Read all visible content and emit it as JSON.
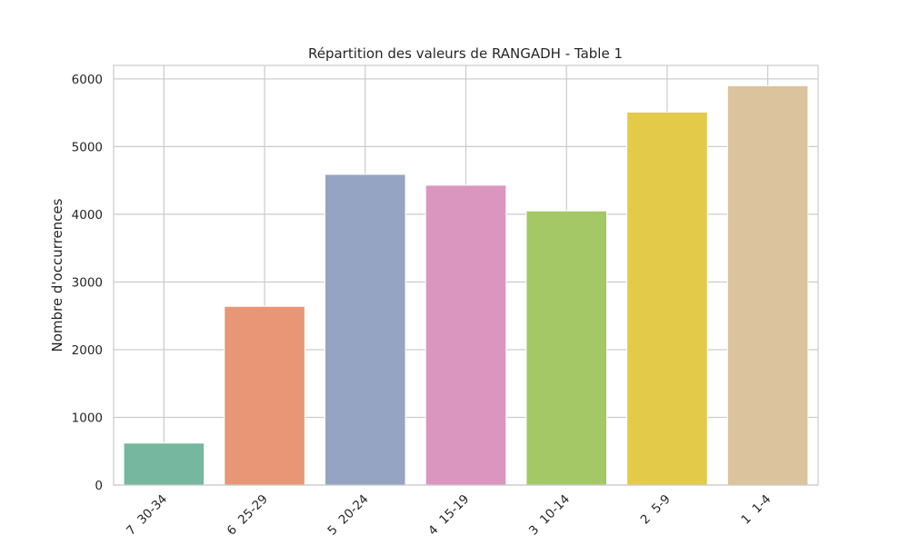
{
  "chart_data": {
    "type": "bar",
    "title": "Répartition des valeurs de RANGADH - Table 1",
    "xlabel": "",
    "ylabel": "Nombre d'occurrences",
    "categories": [
      "7  30-34",
      "6  25-29",
      "5  20-24",
      "4  15-19",
      "3  10-14",
      "2  5-9",
      "1  1-4"
    ],
    "values": [
      620,
      2640,
      4590,
      4430,
      4050,
      5510,
      5900
    ],
    "colors": [
      "#75b79f",
      "#e89675",
      "#94a4c2",
      "#da96bf",
      "#a4c866",
      "#e3ca48",
      "#dbc39e"
    ],
    "ylim": [
      0,
      6200
    ],
    "yticks": [
      0,
      1000,
      2000,
      3000,
      4000,
      5000,
      6000
    ],
    "grid": true,
    "legend": "none"
  }
}
